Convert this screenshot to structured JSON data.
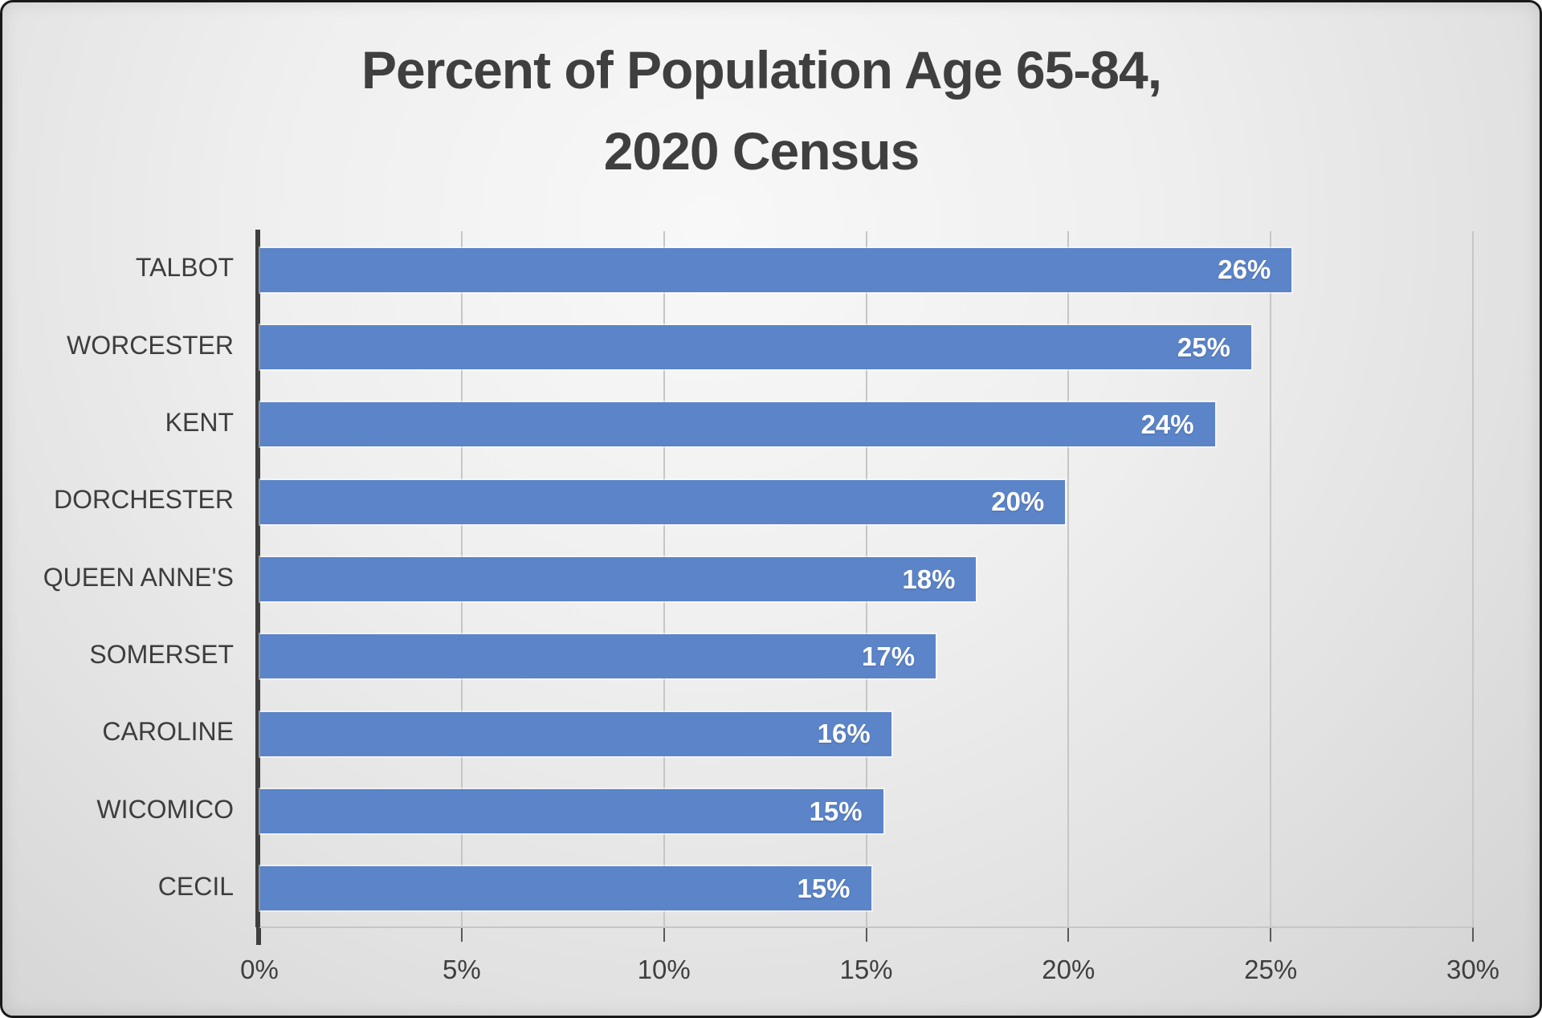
{
  "chart_data": {
    "type": "bar",
    "orientation": "horizontal",
    "title_lines": [
      "Percent of Population Age 65-84,",
      "2020 Census"
    ],
    "categories": [
      "TALBOT",
      "WORCESTER",
      "KENT",
      "DORCHESTER",
      "QUEEN ANNE'S",
      "SOMERSET",
      "CAROLINE",
      "WICOMICO",
      "CECIL"
    ],
    "values_pct": [
      25.5,
      24.5,
      23.6,
      19.9,
      17.7,
      16.7,
      15.6,
      15.4,
      15.1
    ],
    "bar_labels": [
      "26%",
      "25%",
      "24%",
      "20%",
      "18%",
      "17%",
      "16%",
      "15%",
      "15%"
    ],
    "x_ticks": [
      "0%",
      "5%",
      "10%",
      "15%",
      "20%",
      "25%",
      "30%"
    ],
    "x_tick_values": [
      0,
      5,
      10,
      15,
      20,
      25,
      30
    ],
    "xlim": [
      0,
      30
    ],
    "xlabel": "",
    "ylabel": "",
    "legend": "none",
    "grid": "vertical-major",
    "colors": {
      "bar": "#5b84c9",
      "title_text": "#3f3f3f",
      "axis_text": "#3f3f3f",
      "category_text": "#3d3d3d",
      "value_text": "#ffffff",
      "gridline": "#c6c6c6",
      "axis_line": "#3f3f3f",
      "background": "#e6e6e6",
      "frame_border": "#191919"
    }
  }
}
